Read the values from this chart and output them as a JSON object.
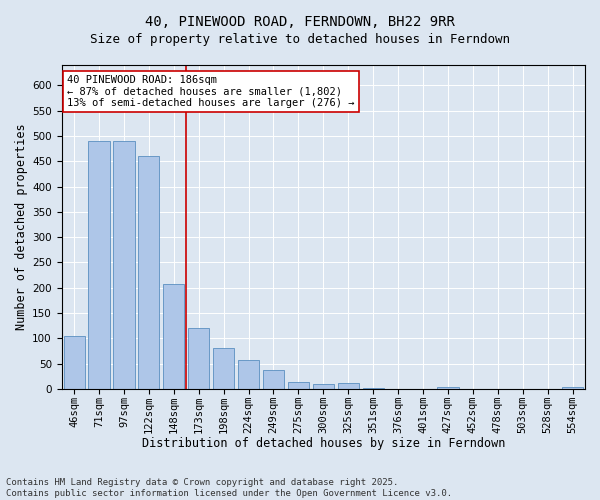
{
  "title": "40, PINEWOOD ROAD, FERNDOWN, BH22 9RR",
  "subtitle": "Size of property relative to detached houses in Ferndown",
  "xlabel": "Distribution of detached houses by size in Ferndown",
  "ylabel": "Number of detached properties",
  "categories": [
    "46sqm",
    "71sqm",
    "97sqm",
    "122sqm",
    "148sqm",
    "173sqm",
    "198sqm",
    "224sqm",
    "249sqm",
    "275sqm",
    "300sqm",
    "325sqm",
    "351sqm",
    "376sqm",
    "401sqm",
    "427sqm",
    "452sqm",
    "478sqm",
    "503sqm",
    "528sqm",
    "554sqm"
  ],
  "values": [
    105,
    490,
    490,
    460,
    207,
    120,
    82,
    58,
    38,
    14,
    10,
    12,
    2,
    0,
    0,
    5,
    0,
    0,
    0,
    0,
    5
  ],
  "bar_color": "#aec6e8",
  "bar_edge_color": "#5a8fc0",
  "vline_x": 5,
  "vline_color": "#cc0000",
  "annotation_text": "40 PINEWOOD ROAD: 186sqm\n← 87% of detached houses are smaller (1,802)\n13% of semi-detached houses are larger (276) →",
  "annotation_box_color": "#ffffff",
  "annotation_box_edge_color": "#cc0000",
  "ylim": [
    0,
    640
  ],
  "yticks": [
    0,
    50,
    100,
    150,
    200,
    250,
    300,
    350,
    400,
    450,
    500,
    550,
    600
  ],
  "bg_color": "#dce6f1",
  "plot_bg_color": "#dce6f1",
  "footer_text": "Contains HM Land Registry data © Crown copyright and database right 2025.\nContains public sector information licensed under the Open Government Licence v3.0.",
  "title_fontsize": 10,
  "subtitle_fontsize": 9,
  "xlabel_fontsize": 8.5,
  "ylabel_fontsize": 8.5,
  "tick_fontsize": 7.5,
  "annotation_fontsize": 7.5,
  "footer_fontsize": 6.5
}
